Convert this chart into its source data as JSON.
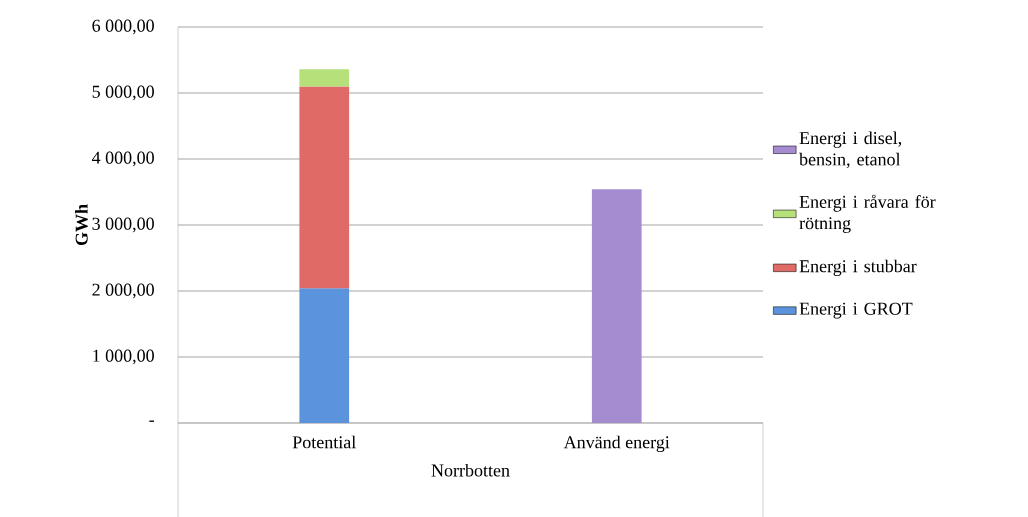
{
  "chart_data": {
    "type": "bar",
    "stacked": true,
    "xlabel": "Norrbotten",
    "ylabel": "GWh",
    "categories": [
      "Potential",
      "Använd energi"
    ],
    "series": [
      {
        "name": "Energi i GROT",
        "color": "#5b93dc",
        "values": [
          2040,
          null
        ]
      },
      {
        "name": "Energi i stubbar",
        "color": "#e06a66",
        "values": [
          3060,
          null
        ]
      },
      {
        "name": "Energi i råvara för rötning",
        "color": "#b5e07a",
        "values": [
          260,
          null
        ]
      },
      {
        "name": "Energi i disel, bensin, etanol",
        "color": "#a58bd0",
        "values": [
          null,
          3540
        ]
      }
    ],
    "ylim": [
      0,
      6000
    ],
    "yticks": [
      {
        "value": 0,
        "label": "-"
      },
      {
        "value": 1000,
        "label": "1 000,00"
      },
      {
        "value": 2000,
        "label": "2 000,00"
      },
      {
        "value": 3000,
        "label": "3 000,00"
      },
      {
        "value": 4000,
        "label": "4 000,00"
      },
      {
        "value": 5000,
        "label": "5 000,00"
      },
      {
        "value": 6000,
        "label": "6 000,00"
      }
    ],
    "grid": "y",
    "legend": "right"
  }
}
